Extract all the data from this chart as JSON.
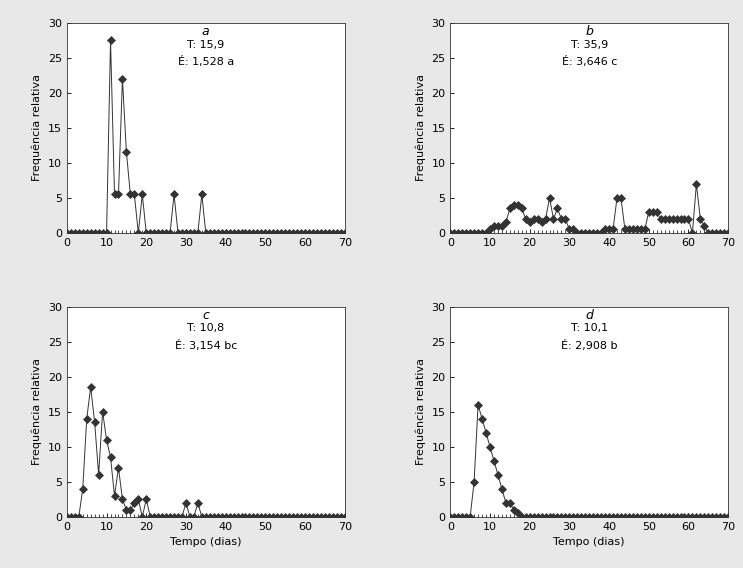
{
  "subplots": [
    {
      "label": "a",
      "annotation_line1": "T: 15,9",
      "annotation_line2": "É: 1,528 a",
      "x": [
        0,
        1,
        2,
        3,
        4,
        5,
        6,
        7,
        8,
        9,
        10,
        11,
        12,
        13,
        14,
        15,
        16,
        17,
        18,
        19,
        20,
        21,
        22,
        23,
        24,
        25,
        26,
        27,
        28,
        29,
        30,
        31,
        32,
        33,
        34,
        35,
        36,
        37,
        38,
        39,
        40,
        41,
        42,
        43,
        44,
        45,
        46,
        47,
        48,
        49,
        50,
        51,
        52,
        53,
        54,
        55,
        56,
        57,
        58,
        59,
        60,
        61,
        62,
        63,
        64,
        65,
        66,
        67,
        68,
        69,
        70
      ],
      "y": [
        0,
        0,
        0,
        0,
        0,
        0,
        0,
        0,
        0,
        0,
        0,
        27.5,
        5.5,
        5.5,
        22,
        11.5,
        5.5,
        5.5,
        0,
        5.5,
        0,
        0,
        0,
        0,
        0,
        0,
        0,
        5.5,
        0,
        0,
        0,
        0,
        0,
        0,
        5.5,
        0,
        0,
        0,
        0,
        0,
        0,
        0,
        0,
        0,
        0,
        0,
        0,
        0,
        0,
        0,
        0,
        0,
        0,
        0,
        0,
        0,
        0,
        0,
        0,
        0,
        0,
        0,
        0,
        0,
        0,
        0,
        0,
        0,
        0,
        0,
        0
      ]
    },
    {
      "label": "b",
      "annotation_line1": "T: 35,9",
      "annotation_line2": "É: 3,646 c",
      "x": [
        0,
        1,
        2,
        3,
        4,
        5,
        6,
        7,
        8,
        9,
        10,
        11,
        12,
        13,
        14,
        15,
        16,
        17,
        18,
        19,
        20,
        21,
        22,
        23,
        24,
        25,
        26,
        27,
        28,
        29,
        30,
        31,
        32,
        33,
        34,
        35,
        36,
        37,
        38,
        39,
        40,
        41,
        42,
        43,
        44,
        45,
        46,
        47,
        48,
        49,
        50,
        51,
        52,
        53,
        54,
        55,
        56,
        57,
        58,
        59,
        60,
        61,
        62,
        63,
        64,
        65,
        66,
        67,
        68,
        69,
        70
      ],
      "y": [
        0,
        0,
        0,
        0,
        0,
        0,
        0,
        0,
        0,
        0,
        0.5,
        1,
        1,
        1,
        1.5,
        3.5,
        4,
        4,
        3.5,
        2,
        1.5,
        2,
        2,
        1.5,
        2,
        5,
        2,
        3.5,
        2,
        2,
        0.5,
        0.5,
        0,
        0,
        0,
        0,
        0,
        0,
        0,
        0.5,
        0.5,
        0.5,
        5,
        5,
        0.5,
        0.5,
        0.5,
        0.5,
        0.5,
        0.5,
        3,
        3,
        3,
        2,
        2,
        2,
        2,
        2,
        2,
        2,
        2,
        0,
        7,
        2,
        1,
        0,
        0,
        0,
        0,
        0,
        0
      ]
    },
    {
      "label": "c",
      "annotation_line1": "T: 10,8",
      "annotation_line2": "É: 3,154 bc",
      "x": [
        0,
        1,
        2,
        3,
        4,
        5,
        6,
        7,
        8,
        9,
        10,
        11,
        12,
        13,
        14,
        15,
        16,
        17,
        18,
        19,
        20,
        21,
        22,
        23,
        24,
        25,
        26,
        27,
        28,
        29,
        30,
        31,
        32,
        33,
        34,
        35,
        36,
        37,
        38,
        39,
        40,
        41,
        42,
        43,
        44,
        45,
        46,
        47,
        48,
        49,
        50,
        51,
        52,
        53,
        54,
        55,
        56,
        57,
        58,
        59,
        60,
        61,
        62,
        63,
        64,
        65,
        66,
        67,
        68,
        69,
        70
      ],
      "y": [
        0,
        0,
        0,
        0,
        4,
        14,
        18.5,
        13.5,
        6,
        15,
        11,
        8.5,
        3,
        7,
        2.5,
        1,
        1,
        2,
        2.5,
        0,
        2.5,
        0,
        0,
        0,
        0,
        0,
        0,
        0,
        0,
        0,
        2,
        0,
        0,
        2,
        0,
        0,
        0,
        0,
        0,
        0,
        0,
        0,
        0,
        0,
        0,
        0,
        0,
        0,
        0,
        0,
        0,
        0,
        0,
        0,
        0,
        0,
        0,
        0,
        0,
        0,
        0,
        0,
        0,
        0,
        0,
        0,
        0,
        0,
        0,
        0,
        0
      ]
    },
    {
      "label": "d",
      "annotation_line1": "T: 10,1",
      "annotation_line2": "É: 2,908 b",
      "x": [
        0,
        1,
        2,
        3,
        4,
        5,
        6,
        7,
        8,
        9,
        10,
        11,
        12,
        13,
        14,
        15,
        16,
        17,
        18,
        19,
        20,
        21,
        22,
        23,
        24,
        25,
        26,
        27,
        28,
        29,
        30,
        31,
        32,
        33,
        34,
        35,
        36,
        37,
        38,
        39,
        40,
        41,
        42,
        43,
        44,
        45,
        46,
        47,
        48,
        49,
        50,
        51,
        52,
        53,
        54,
        55,
        56,
        57,
        58,
        59,
        60,
        61,
        62,
        63,
        64,
        65,
        66,
        67,
        68,
        69,
        70
      ],
      "y": [
        0,
        0,
        0,
        0,
        0,
        0,
        5,
        16,
        14,
        12,
        10,
        8,
        6,
        4,
        2,
        2,
        1,
        0.5,
        0,
        0,
        0,
        0,
        0,
        0,
        0,
        0,
        0,
        0,
        0,
        0,
        0,
        0,
        0,
        0,
        0,
        0,
        0,
        0,
        0,
        0,
        0,
        0,
        0,
        0,
        0,
        0,
        0,
        0,
        0,
        0,
        0,
        0,
        0,
        0,
        0,
        0,
        0,
        0,
        0,
        0,
        0,
        0,
        0,
        0,
        0,
        0,
        0,
        0,
        0,
        0,
        0
      ]
    }
  ],
  "ylabel": "Frequência relativa",
  "xlabel": "Tempo (dias)",
  "xlim": [
    0,
    70
  ],
  "ylim": [
    0,
    30
  ],
  "yticks": [
    0,
    5,
    10,
    15,
    20,
    25,
    30
  ],
  "xticks": [
    0,
    10,
    20,
    30,
    40,
    50,
    60,
    70
  ],
  "line_color": "#333333",
  "marker": "D",
  "markersize": 4,
  "linewidth": 0.7,
  "label_fontsize": 9,
  "annot_fontsize": 8,
  "axis_label_fontsize": 8,
  "tick_fontsize": 8,
  "fig_facecolor": "#e8e8e8",
  "ax_facecolor": "#ffffff"
}
